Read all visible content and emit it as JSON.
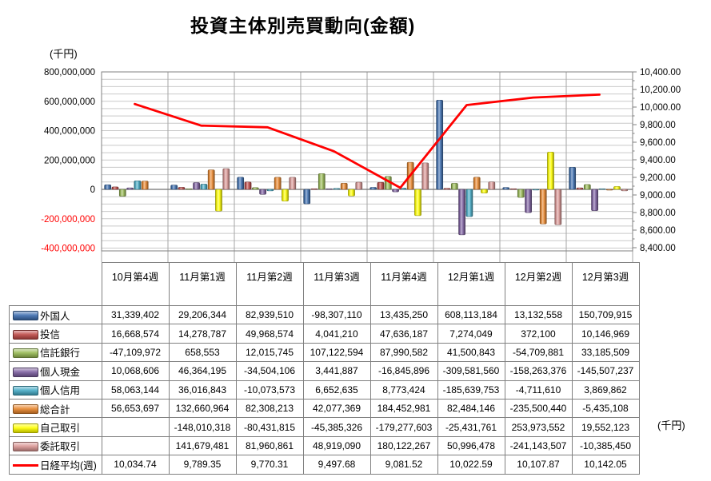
{
  "chart": {
    "title": "投資主体別売買動向(金額)",
    "left_axis_unit": "(千円)",
    "right_axis_unit": "(千円)"
  },
  "chart_data": {
    "type": "bar+line",
    "title": "投資主体別売買動向(金額)",
    "categories": [
      "10月第4週",
      "11月第1週",
      "11月第2週",
      "11月第3週",
      "11月第4週",
      "12月第1週",
      "12月第2週",
      "12月第3週"
    ],
    "left_axis": {
      "unit": "(千円)",
      "min": -400000000,
      "max": 800000000,
      "step": 200000000,
      "minor_step": 50000000,
      "negative_label_color": "#FF0000"
    },
    "right_axis": {
      "unit": "(千円)",
      "min": 8400,
      "max": 10400,
      "step": 200
    },
    "grid": true,
    "legend_position": "data-table-left-column",
    "bar_series": [
      {
        "key": "foreign-investors",
        "name": "外国人",
        "color": "#3E6FB0",
        "values": [
          31339402,
          29206344,
          82939510,
          -98307110,
          13435250,
          608113184,
          13132558,
          150709915
        ]
      },
      {
        "key": "investment-trusts",
        "name": "投信",
        "color": "#BE4B48",
        "values": [
          16668574,
          14278787,
          49968574,
          4041210,
          47636187,
          7274049,
          372100,
          10146969
        ]
      },
      {
        "key": "trust-banks",
        "name": "信託銀行",
        "color": "#98B954",
        "values": [
          -47109972,
          658553,
          12015745,
          107122594,
          87990582,
          41500843,
          -54709881,
          33185509
        ]
      },
      {
        "key": "individual-cash",
        "name": "個人現金",
        "color": "#7D60A0",
        "values": [
          10068606,
          46364195,
          -34504106,
          3441887,
          -16845896,
          -309581560,
          -158263376,
          -145507237
        ]
      },
      {
        "key": "individual-margin",
        "name": "個人信用",
        "color": "#46AAC5",
        "values": [
          58063144,
          36016843,
          -10073573,
          6652635,
          8773424,
          -185639753,
          -4711610,
          3869862
        ]
      },
      {
        "key": "grand-total",
        "name": "総合計",
        "color": "#E8872E",
        "values": [
          56653697,
          132660964,
          82308213,
          42077369,
          184452981,
          82484146,
          -235500440,
          -5435108
        ]
      },
      {
        "key": "proprietary-trading",
        "name": "自己取引",
        "color": "#FFFF00",
        "values": [
          null,
          -148010318,
          -80431815,
          -45385326,
          -179277603,
          -25431761,
          253973552,
          19552123
        ]
      },
      {
        "key": "brokerage-trading",
        "name": "委託取引",
        "color": "#D99694",
        "values": [
          null,
          141679481,
          81960861,
          48919090,
          180122267,
          50996478,
          -241143507,
          -10385450
        ]
      }
    ],
    "line_series": {
      "key": "nikkei-average-weekly",
      "name": "日経平均(週)",
      "color": "#FF0000",
      "axis": "right",
      "values": [
        10034.74,
        9789.35,
        9770.31,
        9497.68,
        9081.52,
        10022.59,
        10107.87,
        10142.05
      ]
    }
  }
}
